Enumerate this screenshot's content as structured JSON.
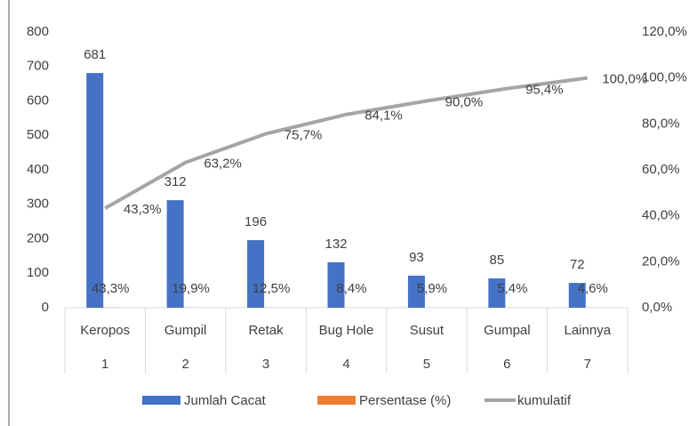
{
  "chart_data": {
    "type": "pareto",
    "categories": [
      "Keropos",
      "Gumpil",
      "Retak",
      "Bug Hole",
      "Susut",
      "Gumpal",
      "Lainnya"
    ],
    "categories_level2": [
      "1",
      "2",
      "3",
      "4",
      "5",
      "6",
      "7"
    ],
    "series": [
      {
        "name": "Jumlah Cacat",
        "color": "#4472c4",
        "type": "bar",
        "axis": "y",
        "values": [
          681,
          312,
          196,
          132,
          93,
          85,
          72
        ]
      },
      {
        "name": "Persentase (%)",
        "color": "#ed7d31",
        "type": "bar",
        "axis": "y",
        "values": [
          0.433,
          0.199,
          0.125,
          0.084,
          0.059,
          0.054,
          0.046
        ],
        "value_labels": [
          "43,3%",
          "19,9%",
          "12,5%",
          "8,4%",
          "5,9%",
          "5,4%",
          "4,6%"
        ]
      },
      {
        "name": "kumulatif",
        "color": "#a5a5a5",
        "type": "line",
        "axis": "y2",
        "values": [
          43.3,
          63.2,
          75.7,
          84.1,
          90.0,
          95.4,
          100.0
        ],
        "value_labels": [
          "43,3%",
          "63,2%",
          "75,7%",
          "84,1%",
          "90,0%",
          "95,4%",
          "100,0%"
        ]
      }
    ],
    "ylim": [
      0,
      800
    ],
    "yticks": [
      0,
      100,
      200,
      300,
      400,
      500,
      600,
      700,
      800
    ],
    "y2lim": [
      0,
      120
    ],
    "y2ticks": [
      {
        "value": 0,
        "label": "0,0%"
      },
      {
        "value": 20,
        "label": "20,0%"
      },
      {
        "value": 40,
        "label": "40,0%"
      },
      {
        "value": 60,
        "label": "60,0%"
      },
      {
        "value": 80,
        "label": "80,0%"
      },
      {
        "value": 100,
        "label": "100,0%"
      },
      {
        "value": 120,
        "label": "120,0%"
      }
    ],
    "grid": false,
    "legend": "bottom"
  }
}
